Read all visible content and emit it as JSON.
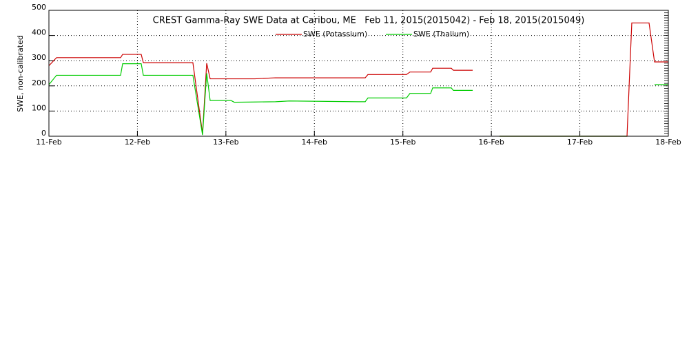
{
  "chart_data": {
    "type": "line",
    "title": "CREST Gamma-Ray SWE Data at Caribou, ME   Feb 11, 2015(2015042) - Feb 18, 2015(2015049)",
    "y_label": "SWE, non-calibrated",
    "x": [
      11.0,
      11.086,
      11.81,
      11.833,
      12.043,
      12.067,
      12.627,
      12.736,
      12.783,
      12.822,
      13.056,
      13.095,
      13.328,
      13.56,
      13.716,
      14.5,
      14.574,
      14.605,
      15.041,
      15.08,
      15.314,
      15.337,
      15.547,
      15.571,
      15.789,
      15.9,
      16.092,
      17.533,
      17.587,
      17.782,
      17.844,
      18.0
    ],
    "series": [
      {
        "name": "SWE (Potassium)",
        "color": "#cc0000",
        "values": [
          280,
          312,
          312,
          325,
          325,
          292,
          292,
          10,
          290,
          228,
          228,
          228,
          228,
          232,
          232,
          232,
          232,
          245,
          245,
          255,
          255,
          270,
          270,
          262,
          262,
          null,
          0,
          0,
          450,
          450,
          295,
          295
        ]
      },
      {
        "name": "SWE (Thalium)",
        "color": "#00cc00",
        "values": [
          205,
          242,
          242,
          288,
          288,
          242,
          242,
          5,
          250,
          142,
          142,
          135,
          136,
          137,
          140,
          137,
          137,
          152,
          152,
          170,
          170,
          192,
          192,
          182,
          182,
          null,
          0,
          0,
          null,
          null,
          205,
          205
        ]
      }
    ],
    "xlim": [
      11,
      18
    ],
    "xticks": [
      {
        "value": 11,
        "label": "11-Feb"
      },
      {
        "value": 12,
        "label": "12-Feb"
      },
      {
        "value": 13,
        "label": "13-Feb"
      },
      {
        "value": 14,
        "label": "14-Feb"
      },
      {
        "value": 15,
        "label": "15-Feb"
      },
      {
        "value": 16,
        "label": "16-Feb"
      },
      {
        "value": 17,
        "label": "17-Feb"
      },
      {
        "value": 18,
        "label": "18-Feb"
      }
    ],
    "ylim": [
      0,
      500
    ],
    "yticks": [
      0,
      100,
      200,
      300,
      400,
      500
    ],
    "grid": true
  }
}
